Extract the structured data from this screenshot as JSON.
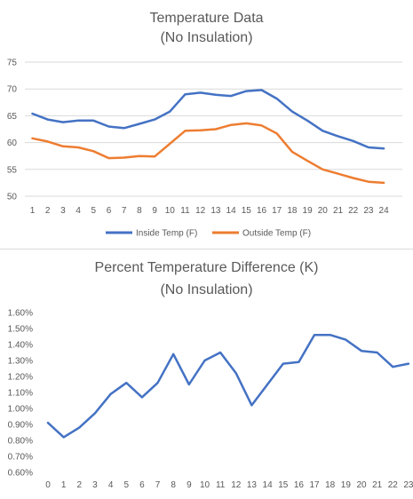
{
  "chart_data": [
    {
      "type": "line",
      "title": "Temperature Data",
      "subtitle": "(No Insulation)",
      "x": [
        1,
        2,
        3,
        4,
        5,
        6,
        7,
        8,
        9,
        10,
        11,
        12,
        13,
        14,
        15,
        16,
        17,
        18,
        19,
        20,
        21,
        22,
        23,
        24
      ],
      "x_tick_labels": [
        "1",
        "2",
        "3",
        "4",
        "5",
        "6",
        "7",
        "8",
        "9",
        "10",
        "11",
        "12",
        "13",
        "14",
        "15",
        "16",
        "17",
        "18",
        "19",
        "20",
        "21",
        "22",
        "23",
        "24"
      ],
      "ylim": [
        50,
        75
      ],
      "y_ticks": [
        50,
        55,
        60,
        65,
        70,
        75
      ],
      "y_tick_labels": [
        "50",
        "55",
        "60",
        "65",
        "70",
        "75"
      ],
      "grid": true,
      "legend": "bottom",
      "series": [
        {
          "name": "Inside Temp (F)",
          "color": "#4472c4",
          "values": [
            65.4,
            64.3,
            63.8,
            64.1,
            64.1,
            63.0,
            62.7,
            63.5,
            64.3,
            65.8,
            69.0,
            69.3,
            68.9,
            68.7,
            69.6,
            69.8,
            68.2,
            65.8,
            64.1,
            62.2,
            61.2,
            60.3,
            59.1,
            58.9
          ]
        },
        {
          "name": "Outside Temp (F)",
          "color": "#ed7d31",
          "values": [
            60.8,
            60.2,
            59.3,
            59.1,
            58.4,
            57.1,
            57.2,
            57.5,
            57.4,
            59.8,
            62.2,
            62.3,
            62.5,
            63.3,
            63.6,
            63.2,
            61.7,
            58.3,
            56.6,
            55.0,
            54.2,
            53.4,
            52.7,
            52.5
          ]
        }
      ]
    },
    {
      "type": "line",
      "title": "Percent Temperature Difference (K)",
      "subtitle": "(No Insulation)",
      "x": [
        0,
        1,
        2,
        3,
        4,
        5,
        6,
        7,
        8,
        9,
        10,
        11,
        12,
        13,
        14,
        15,
        16,
        17,
        18,
        19,
        20,
        21,
        22,
        23
      ],
      "x_tick_labels": [
        "0",
        "1",
        "2",
        "3",
        "4",
        "5",
        "6",
        "7",
        "8",
        "9",
        "10",
        "11",
        "12",
        "13",
        "14",
        "15",
        "16",
        "17",
        "18",
        "19",
        "20",
        "21",
        "22",
        "23"
      ],
      "ylim": [
        0.006,
        0.016
      ],
      "y_ticks": [
        0.006,
        0.007,
        0.008,
        0.009,
        0.01,
        0.011,
        0.012,
        0.013,
        0.014,
        0.015,
        0.016
      ],
      "y_tick_labels": [
        "0.60%",
        "0.70%",
        "0.80%",
        "0.90%",
        "1.00%",
        "1.10%",
        "1.20%",
        "1.30%",
        "1.40%",
        "1.50%",
        "1.60%"
      ],
      "grid": false,
      "legend": "none",
      "series": [
        {
          "color": "#4472c4",
          "values": [
            0.0091,
            0.0082,
            0.0088,
            0.0097,
            0.0109,
            0.0116,
            0.0107,
            0.0116,
            0.0134,
            0.0115,
            0.013,
            0.0135,
            0.0122,
            0.0102,
            0.0115,
            0.0128,
            0.0129,
            0.0146,
            0.0146,
            0.0143,
            0.0136,
            0.0135,
            0.0126,
            0.0128
          ]
        }
      ]
    }
  ]
}
